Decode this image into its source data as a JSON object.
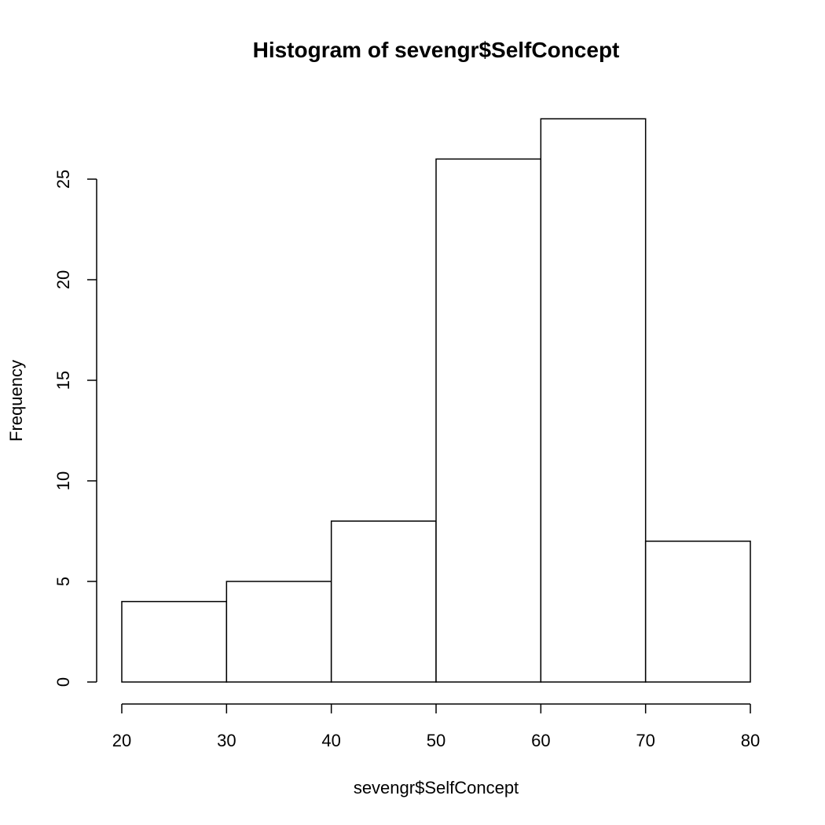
{
  "chart_data": {
    "type": "bar",
    "subtype": "histogram",
    "title": "Histogram of sevengr$SelfConcept",
    "xlabel": "sevengr$SelfConcept",
    "ylabel": "Frequency",
    "bins": [
      {
        "from": 20,
        "to": 30,
        "value": 4
      },
      {
        "from": 30,
        "to": 40,
        "value": 5
      },
      {
        "from": 40,
        "to": 50,
        "value": 8
      },
      {
        "from": 50,
        "to": 60,
        "value": 26
      },
      {
        "from": 60,
        "to": 70,
        "value": 28
      },
      {
        "from": 70,
        "to": 80,
        "value": 7
      }
    ],
    "xticks": [
      20,
      30,
      40,
      50,
      60,
      70,
      80
    ],
    "yticks": [
      0,
      5,
      10,
      15,
      20,
      25
    ],
    "xlim": [
      20,
      80
    ],
    "ylim": [
      0,
      28
    ],
    "grid": false,
    "legend": "none",
    "bar_fill": "#ffffff",
    "bar_stroke": "#000000"
  }
}
